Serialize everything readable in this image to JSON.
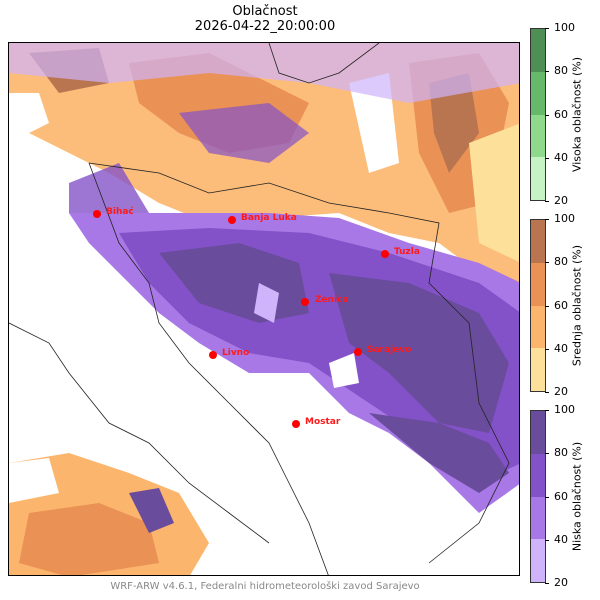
{
  "title": "Oblačnost",
  "datetime": "2026-04-22_20:00:00",
  "footer": "WRF-ARW v4.6.1, Federalni hidrometeorološki zavod Sarajevo",
  "cities": [
    {
      "name": "Bihać"
    },
    {
      "name": "Banja Luka"
    },
    {
      "name": "Tuzla"
    },
    {
      "name": "Zenica"
    },
    {
      "name": "Livno"
    },
    {
      "name": "Sarajevo"
    },
    {
      "name": "Mostar"
    }
  ],
  "colorbars": [
    {
      "label": "Visoka oblačnost (%)",
      "ticks": [
        "100",
        "80",
        "60",
        "40",
        "20"
      ],
      "colors": [
        "#4f8f55",
        "#66b86a",
        "#8fd98c",
        "#c6f3c3"
      ]
    },
    {
      "label": "Srednja oblačnost (%)",
      "ticks": [
        "100",
        "80",
        "60",
        "40",
        "20"
      ],
      "colors": [
        "#b97550",
        "#ea9155",
        "#fcb56c",
        "#fde09a"
      ]
    },
    {
      "label": "Niska oblačnost (%)",
      "ticks": [
        "100",
        "80",
        "60",
        "40",
        "20"
      ],
      "colors": [
        "#6a4c9c",
        "#8452c8",
        "#a878e6",
        "#cfb4fb"
      ]
    }
  ]
}
